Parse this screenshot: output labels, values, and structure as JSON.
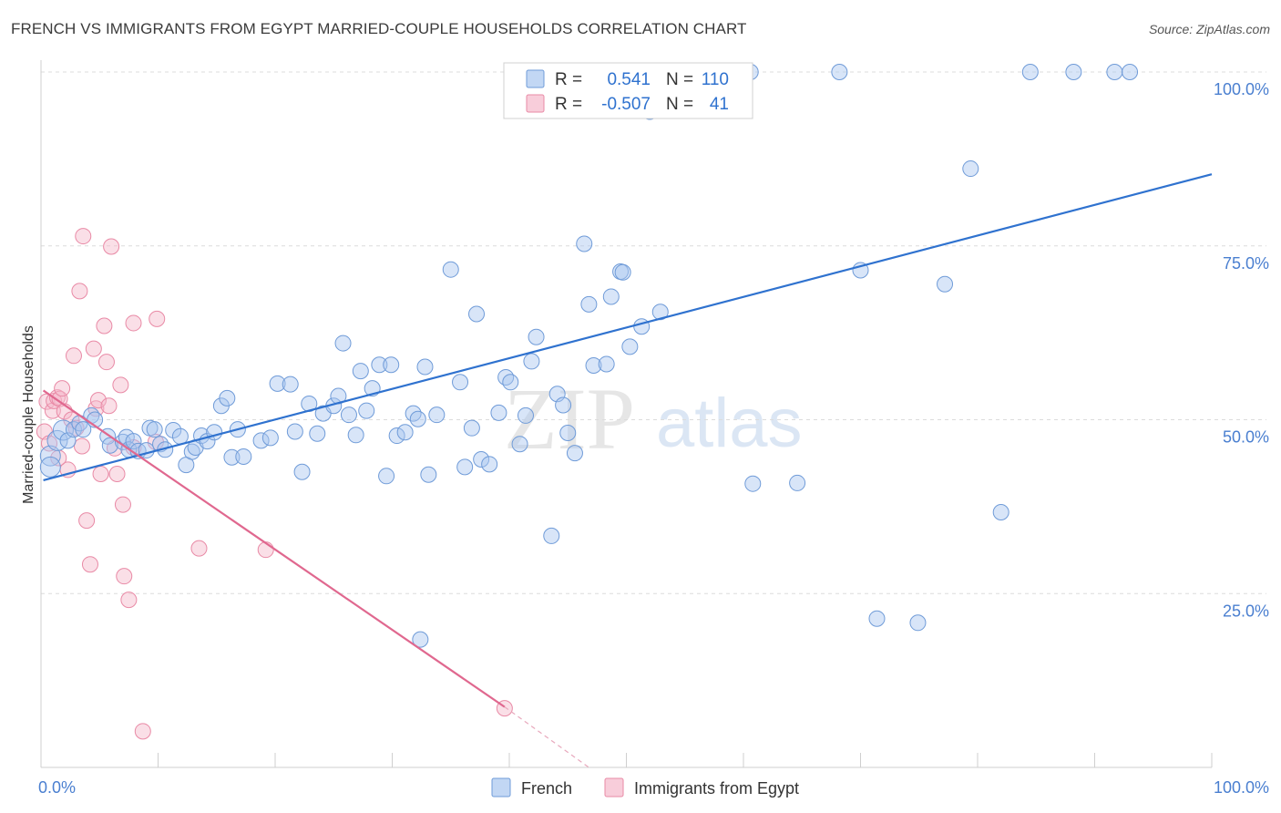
{
  "title": "FRENCH VS IMMIGRANTS FROM EGYPT MARRIED-COUPLE HOUSEHOLDS CORRELATION CHART",
  "source": "Source: ZipAtlas.com",
  "watermark": {
    "part1": "ZIP",
    "part2": "atlas"
  },
  "colors": {
    "french_fill": "#a8c6f0",
    "french_stroke": "#6f9bd8",
    "french_line": "#2f72cf",
    "egypt_fill": "#f5b8ca",
    "egypt_stroke": "#e98aa6",
    "egypt_line": "#e0688f",
    "tick_text": "#4a7fd0",
    "grid": "#dcdcdc"
  },
  "stats_legend": {
    "rows": [
      {
        "r_label": "R =",
        "r_value": "0.541",
        "n_label": "N =",
        "n_value": "110"
      },
      {
        "r_label": "R =",
        "r_value": "-0.507",
        "n_label": "N =",
        "n_value": "41"
      }
    ]
  },
  "bottom_legend": [
    "French",
    "Immigrants from Egypt"
  ],
  "chart_data": {
    "type": "scatter",
    "ylabel": "Married-couple Households",
    "xlabel": "",
    "x_tick_labels": [
      "0.0%",
      "100.0%"
    ],
    "y_tick_labels": [
      "25.0%",
      "50.0%",
      "75.0%",
      "100.0%"
    ],
    "xlim": [
      0,
      100
    ],
    "ylim": [
      0,
      100
    ],
    "y_ticks": [
      25,
      50,
      75,
      100
    ],
    "grid": true,
    "series": [
      {
        "name": "French",
        "points": [
          [
            0.8,
            44.8
          ],
          [
            0.8,
            43.2
          ],
          [
            1.4,
            47.0
          ],
          [
            1.9,
            48.5
          ],
          [
            2.3,
            47.0
          ],
          [
            2.8,
            48.6
          ],
          [
            3.3,
            49.5
          ],
          [
            3.6,
            48.6
          ],
          [
            4.3,
            50.6
          ],
          [
            4.6,
            50.0
          ],
          [
            5.7,
            47.6
          ],
          [
            5.9,
            46.3
          ],
          [
            7.0,
            46.8
          ],
          [
            7.3,
            47.5
          ],
          [
            7.5,
            45.7
          ],
          [
            7.9,
            46.9
          ],
          [
            8.3,
            45.5
          ],
          [
            9.0,
            45.6
          ],
          [
            9.3,
            48.8
          ],
          [
            9.7,
            48.6
          ],
          [
            10.2,
            46.5
          ],
          [
            10.6,
            45.7
          ],
          [
            11.3,
            48.5
          ],
          [
            11.9,
            47.6
          ],
          [
            12.4,
            43.5
          ],
          [
            12.9,
            45.4
          ],
          [
            13.2,
            46.0
          ],
          [
            13.7,
            47.7
          ],
          [
            14.2,
            46.9
          ],
          [
            14.8,
            48.2
          ],
          [
            15.4,
            52.0
          ],
          [
            15.9,
            53.1
          ],
          [
            16.3,
            44.6
          ],
          [
            16.8,
            48.6
          ],
          [
            17.3,
            44.7
          ],
          [
            18.8,
            47.0
          ],
          [
            19.6,
            47.4
          ],
          [
            20.2,
            55.2
          ],
          [
            21.3,
            55.1
          ],
          [
            21.7,
            48.3
          ],
          [
            22.3,
            42.5
          ],
          [
            22.9,
            52.3
          ],
          [
            23.6,
            48.0
          ],
          [
            24.1,
            50.9
          ],
          [
            25.0,
            52.0
          ],
          [
            25.4,
            53.4
          ],
          [
            25.8,
            61.0
          ],
          [
            26.3,
            50.7
          ],
          [
            26.9,
            47.8
          ],
          [
            27.3,
            57.0
          ],
          [
            27.8,
            51.3
          ],
          [
            28.3,
            54.5
          ],
          [
            28.9,
            57.9
          ],
          [
            29.5,
            41.9
          ],
          [
            29.9,
            57.9
          ],
          [
            30.4,
            47.7
          ],
          [
            31.1,
            48.2
          ],
          [
            31.8,
            50.9
          ],
          [
            32.2,
            50.1
          ],
          [
            32.8,
            57.6
          ],
          [
            33.1,
            42.1
          ],
          [
            33.8,
            50.7
          ],
          [
            35.0,
            71.6
          ],
          [
            35.8,
            55.4
          ],
          [
            36.2,
            43.2
          ],
          [
            36.8,
            48.8
          ],
          [
            37.2,
            65.2
          ],
          [
            37.6,
            44.3
          ],
          [
            38.3,
            43.6
          ],
          [
            39.1,
            51.0
          ],
          [
            39.7,
            56.1
          ],
          [
            40.1,
            55.4
          ],
          [
            40.9,
            46.5
          ],
          [
            41.4,
            50.6
          ],
          [
            41.9,
            58.4
          ],
          [
            42.3,
            61.9
          ],
          [
            43.6,
            33.3
          ],
          [
            44.1,
            53.7
          ],
          [
            44.6,
            52.1
          ],
          [
            45.0,
            48.1
          ],
          [
            45.6,
            45.2
          ],
          [
            46.4,
            75.3
          ],
          [
            46.8,
            66.6
          ],
          [
            47.2,
            57.8
          ],
          [
            48.3,
            58.0
          ],
          [
            48.7,
            67.7
          ],
          [
            49.5,
            71.3
          ],
          [
            49.7,
            71.2
          ],
          [
            50.3,
            60.5
          ],
          [
            51.3,
            63.4
          ],
          [
            52.0,
            94.3
          ],
          [
            52.9,
            65.5
          ],
          [
            55.1,
            100.0
          ],
          [
            56.8,
            100.0
          ],
          [
            57.4,
            100.0
          ],
          [
            60.6,
            100.0
          ],
          [
            60.8,
            40.8
          ],
          [
            64.6,
            40.9
          ],
          [
            68.2,
            100.0
          ],
          [
            70.0,
            71.5
          ],
          [
            71.4,
            21.4
          ],
          [
            74.9,
            20.8
          ],
          [
            77.2,
            69.5
          ],
          [
            79.4,
            86.1
          ],
          [
            82.0,
            36.7
          ],
          [
            84.5,
            100.0
          ],
          [
            88.2,
            100.0
          ],
          [
            91.7,
            100.0
          ],
          [
            93.0,
            100.0
          ],
          [
            32.4,
            18.4
          ]
        ],
        "trend": {
          "x1": 0.2,
          "y1": 41.3,
          "x2": 100.0,
          "y2": 85.3
        }
      },
      {
        "name": "Immigrants from Egypt",
        "points": [
          [
            0.3,
            48.3
          ],
          [
            0.5,
            52.6
          ],
          [
            0.7,
            46.6
          ],
          [
            1.0,
            51.3
          ],
          [
            1.1,
            52.7
          ],
          [
            1.4,
            53.2
          ],
          [
            1.6,
            53.0
          ],
          [
            1.8,
            54.5
          ],
          [
            2.0,
            51.2
          ],
          [
            2.3,
            42.8
          ],
          [
            2.6,
            50.0
          ],
          [
            2.8,
            59.2
          ],
          [
            3.0,
            48.8
          ],
          [
            3.3,
            68.5
          ],
          [
            3.5,
            46.2
          ],
          [
            3.6,
            76.4
          ],
          [
            3.9,
            35.5
          ],
          [
            4.2,
            29.2
          ],
          [
            4.5,
            60.2
          ],
          [
            4.7,
            51.6
          ],
          [
            4.9,
            52.8
          ],
          [
            5.1,
            42.2
          ],
          [
            5.4,
            63.5
          ],
          [
            5.6,
            58.3
          ],
          [
            5.8,
            52.0
          ],
          [
            6.0,
            74.9
          ],
          [
            6.3,
            45.9
          ],
          [
            6.5,
            42.2
          ],
          [
            6.8,
            55.0
          ],
          [
            7.0,
            37.8
          ],
          [
            7.1,
            27.5
          ],
          [
            7.5,
            24.1
          ],
          [
            7.9,
            46.0
          ],
          [
            8.7,
            5.2
          ],
          [
            9.8,
            46.8
          ],
          [
            7.9,
            63.9
          ],
          [
            9.9,
            64.5
          ],
          [
            13.5,
            31.5
          ],
          [
            19.2,
            31.3
          ],
          [
            39.6,
            8.5
          ],
          [
            1.5,
            44.5
          ]
        ],
        "trend": {
          "x1": 0.2,
          "y1": 54.2,
          "x2": 39.6,
          "y2": 8.7
        },
        "trend_extension": {
          "x1": 39.6,
          "y1": 8.7,
          "x2": 46.8,
          "y2": 0.0
        }
      }
    ]
  }
}
